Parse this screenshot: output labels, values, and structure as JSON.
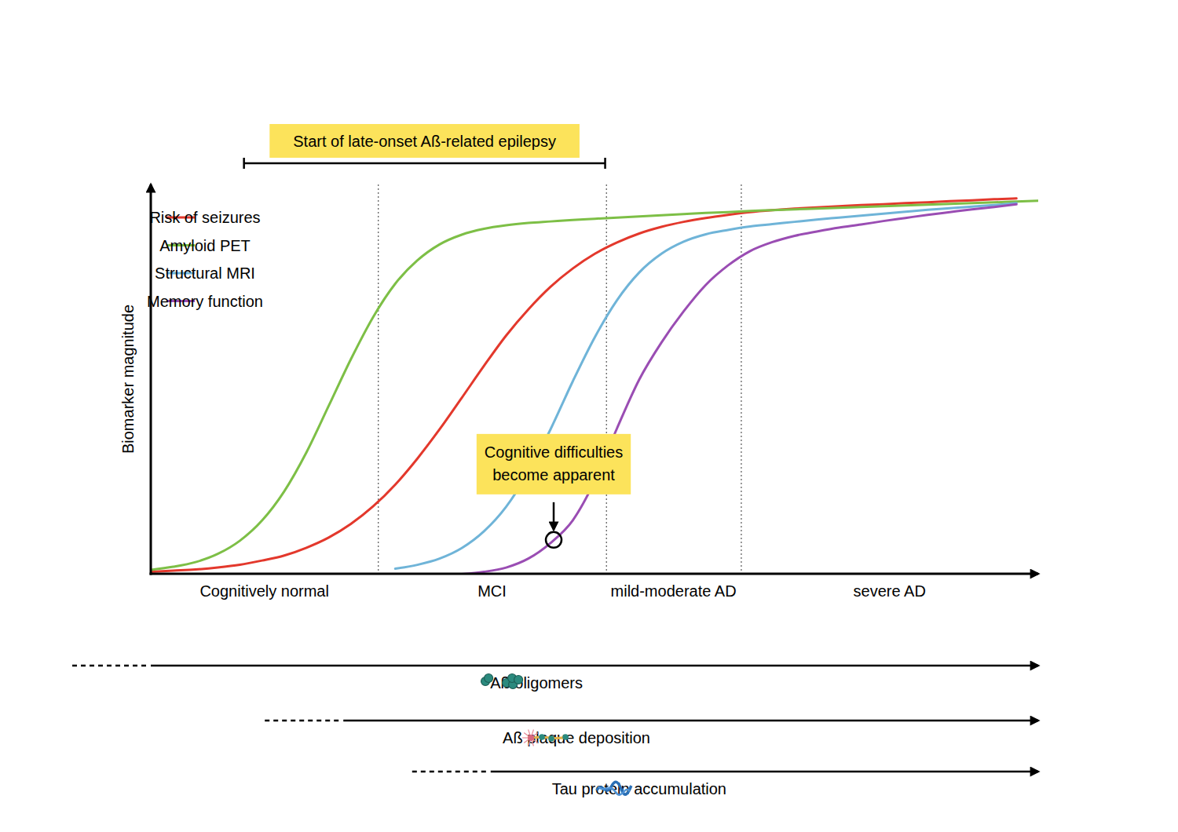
{
  "chart_data": {
    "type": "line",
    "y_label": "Biomarker magnitude",
    "xlim": [
      0,
      100
    ],
    "ylim": [
      0,
      100
    ],
    "tick_labels": false,
    "legend": "top-left",
    "x": [
      0,
      2.5,
      5,
      7.5,
      10,
      12.5,
      15,
      17.5,
      20,
      22.5,
      25,
      27.5,
      30,
      32.5,
      35,
      37.5,
      40,
      42.5,
      45,
      47.5,
      50,
      52.5,
      55,
      57.5,
      60,
      62.5,
      65,
      67.5,
      70,
      72.5,
      75,
      77.5,
      80,
      82.5,
      85,
      87.5,
      90,
      92.5,
      95,
      97.5,
      100
    ],
    "series": [
      {
        "name": "Risk of seizures",
        "color": "#e3382c",
        "values": [
          0.6,
          0.9,
          1.2,
          1.7,
          2.4,
          3.5,
          4.8,
          6.8,
          9.4,
          12.9,
          17.4,
          23.0,
          29.7,
          37.2,
          45.3,
          53.5,
          61.3,
          68.0,
          73.8,
          78.5,
          82.3,
          85.2,
          87.5,
          89.2,
          90.5,
          91.5,
          92.3,
          93.0,
          93.5,
          93.9,
          94.2,
          94.5,
          94.8,
          95.0,
          95.3,
          95.5,
          95.8,
          96.0,
          96.3,
          96.5,
          null
        ]
      },
      {
        "name": "Amyloid PET",
        "color": "#7dbf46",
        "values": [
          1.1,
          1.9,
          3.1,
          5.2,
          8.6,
          13.8,
          21.3,
          31.3,
          43.2,
          55.2,
          66.0,
          74.6,
          80.6,
          84.7,
          87.2,
          88.7,
          89.6,
          90.2,
          90.6,
          91.0,
          91.3,
          91.6,
          91.9,
          92.2,
          92.5,
          92.8,
          93.0,
          93.3,
          93.5,
          93.7,
          93.9,
          94.1,
          94.3,
          94.5,
          94.7,
          94.9,
          95.1,
          95.3,
          95.5,
          95.7,
          95.9
        ]
      },
      {
        "name": "Structural MRI",
        "color": "#6fb4d8",
        "values": [
          null,
          null,
          null,
          null,
          null,
          null,
          null,
          null,
          null,
          null,
          null,
          1.4,
          2.4,
          4.0,
          6.7,
          11.0,
          17.3,
          26.2,
          37.2,
          49.5,
          60.9,
          70.4,
          77.5,
          82.3,
          85.4,
          87.3,
          88.4,
          89.3,
          89.9,
          90.5,
          91.1,
          91.6,
          92.1,
          92.6,
          93.1,
          93.6,
          94.0,
          94.4,
          94.8,
          95.3,
          null
        ]
      },
      {
        "name": "Memory function",
        "color": "#9a4db3",
        "values": [
          null,
          null,
          null,
          null,
          null,
          null,
          null,
          null,
          null,
          null,
          null,
          null,
          null,
          null,
          0,
          0.6,
          1.7,
          4.0,
          8.0,
          13.8,
          24.0,
          37.5,
          50.0,
          59.5,
          67.5,
          74.3,
          79.3,
          83.0,
          85.3,
          86.9,
          88.0,
          89.0,
          89.8,
          90.7,
          91.5,
          92.3,
          93.0,
          93.7,
          94.3,
          95.0,
          null
        ]
      }
    ],
    "stages": [
      "Cognitively normal",
      "MCI",
      "mild-moderate AD",
      "severe AD"
    ],
    "stage_boundaries": [
      25.6,
      51.3,
      66.5
    ],
    "annotations": [
      {
        "text": "Start of late-onset Aß-related epilepsy",
        "x_start": 10.5,
        "x_end": 51.2
      },
      {
        "text": "Cognitive difficulties become apparent",
        "x": 45.4,
        "y": 8.7
      }
    ],
    "timelines": [
      {
        "label": "Aß oligomers",
        "start": 0,
        "end": 100
      },
      {
        "label": "Aß plaque deposition",
        "start": 21.7,
        "end": 100
      },
      {
        "label": "Tau protein accumulation",
        "start": 38.3,
        "end": 100
      }
    ]
  }
}
